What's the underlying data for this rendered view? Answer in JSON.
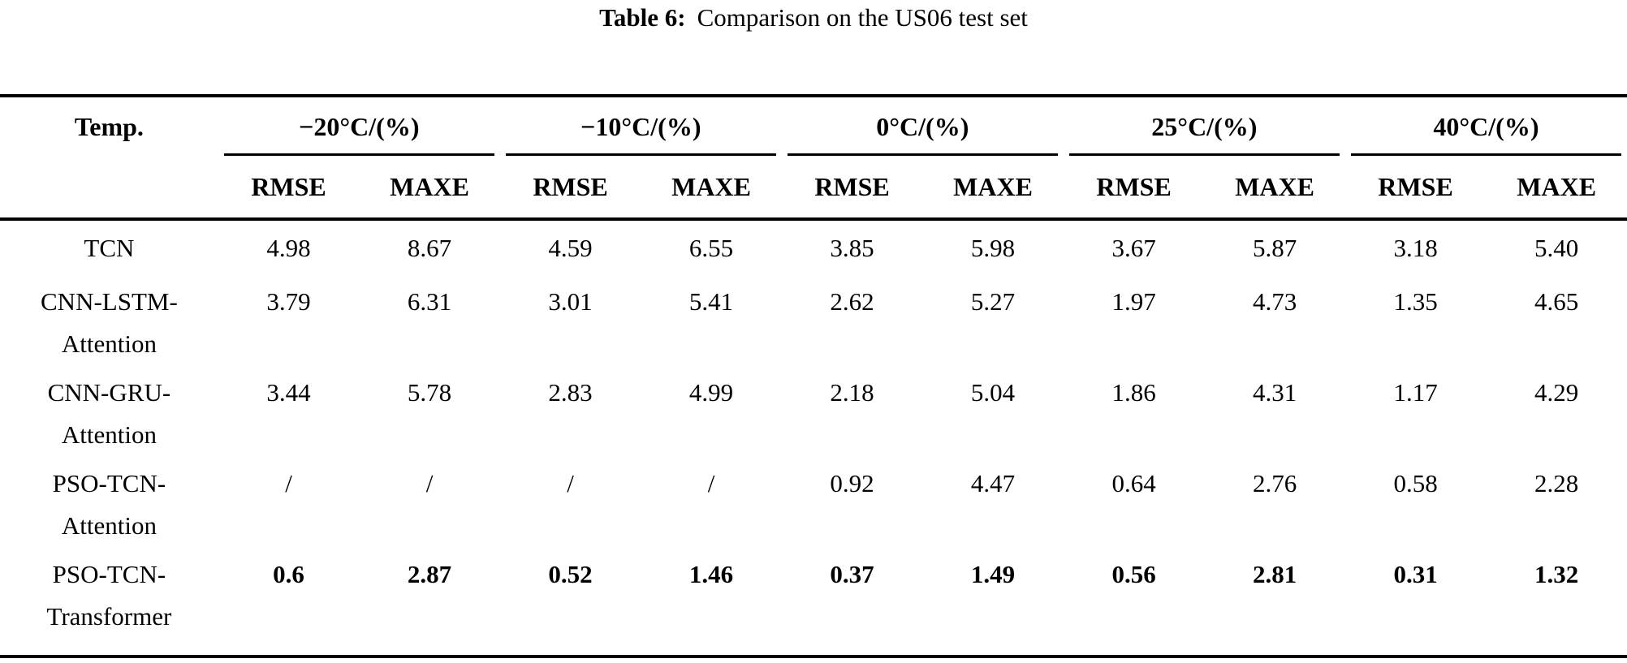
{
  "caption": {
    "label": "Table 6:",
    "text": "Comparison on the US06 test set"
  },
  "table": {
    "temp_header": "Temp.",
    "group_headers": [
      "−20°C/(%)",
      "−10°C/(%)",
      "0°C/(%)",
      "25°C/(%)",
      "40°C/(%)"
    ],
    "metric_headers": [
      "RMSE",
      "MAXE"
    ],
    "rows": [
      {
        "model": "TCN",
        "model_line2": "",
        "bold": false,
        "values": [
          "4.98",
          "8.67",
          "4.59",
          "6.55",
          "3.85",
          "5.98",
          "3.67",
          "5.87",
          "3.18",
          "5.40"
        ]
      },
      {
        "model": "CNN-LSTM-",
        "model_line2": "Attention",
        "bold": false,
        "values": [
          "3.79",
          "6.31",
          "3.01",
          "5.41",
          "2.62",
          "5.27",
          "1.97",
          "4.73",
          "1.35",
          "4.65"
        ]
      },
      {
        "model": "CNN-GRU-",
        "model_line2": "Attention",
        "bold": false,
        "values": [
          "3.44",
          "5.78",
          "2.83",
          "4.99",
          "2.18",
          "5.04",
          "1.86",
          "4.31",
          "1.17",
          "4.29"
        ]
      },
      {
        "model": "PSO-TCN-",
        "model_line2": "Attention",
        "bold": false,
        "values": [
          "/",
          "/",
          "/",
          "/",
          "0.92",
          "4.47",
          "0.64",
          "2.76",
          "0.58",
          "2.28"
        ]
      },
      {
        "model": "PSO-TCN-",
        "model_line2": "Transformer",
        "bold": true,
        "values": [
          "0.6",
          "2.87",
          "0.52",
          "1.46",
          "0.37",
          "1.49",
          "0.56",
          "2.81",
          "0.31",
          "1.32"
        ]
      }
    ]
  },
  "colors": {
    "text": "#000000",
    "background": "#ffffff",
    "rule": "#000000"
  }
}
